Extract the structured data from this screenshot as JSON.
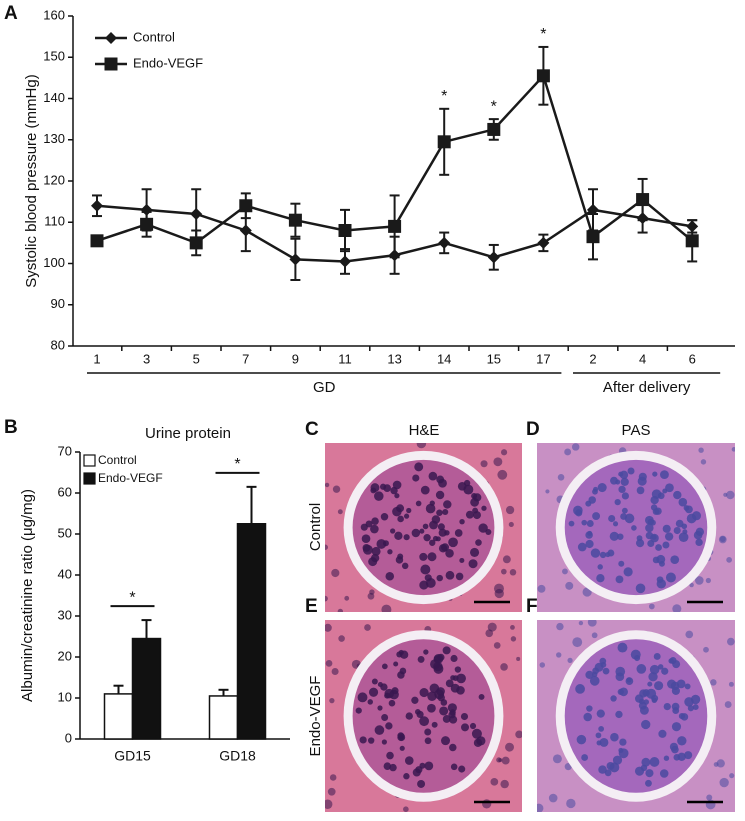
{
  "chart_data": [
    {
      "type": "line",
      "panel": "A",
      "ylabel": "Systolic blood pressure (mmHg)",
      "groups": [
        {
          "label": "GD",
          "categories": [
            "1",
            "3",
            "5",
            "7",
            "9",
            "11",
            "13",
            "14",
            "15",
            "17"
          ]
        },
        {
          "label": "After delivery",
          "categories": [
            "2",
            "4",
            "6"
          ]
        }
      ],
      "series": [
        {
          "name": "Control",
          "color": "#1a1a1a",
          "marker": "diamond",
          "values": [
            114,
            113,
            112,
            108,
            101,
            100.5,
            102,
            105,
            101.5,
            105,
            113,
            111,
            109
          ],
          "errors": [
            2.5,
            5,
            6,
            5,
            5,
            3,
            4.5,
            2.5,
            3,
            2,
            5,
            3.5,
            1.5
          ]
        },
        {
          "name": "Endo-VEGF",
          "color": "#1a1a1a",
          "marker": "square",
          "values": [
            105.5,
            109.5,
            105,
            114,
            110.5,
            108,
            109,
            129.5,
            132.5,
            145.5,
            106.5,
            115.5,
            105.5
          ],
          "errors": [
            1,
            3,
            3,
            3,
            4,
            5,
            7.5,
            8,
            2.5,
            7,
            5.5,
            5,
            5
          ],
          "significance": [
            null,
            null,
            null,
            null,
            null,
            null,
            null,
            "*",
            "*",
            "*",
            null,
            null,
            null
          ]
        }
      ],
      "ylim": [
        80,
        160
      ],
      "yticks": [
        80,
        90,
        100,
        110,
        120,
        130,
        140,
        150,
        160
      ],
      "legend": "top-left"
    },
    {
      "type": "bar",
      "panel": "B",
      "title": "Urine protein",
      "ylabel": "Albumin/creatinine ratio (μg/mg)",
      "categories": [
        "GD15",
        "GD18"
      ],
      "series": [
        {
          "name": "Control",
          "color": "#ffffff",
          "values": [
            11,
            10.5
          ],
          "errors": [
            2,
            1.5
          ]
        },
        {
          "name": "Endo-VEGF",
          "color": "#111111",
          "values": [
            24.5,
            52.5
          ],
          "errors": [
            4.5,
            9
          ]
        }
      ],
      "significance": [
        "*",
        "*"
      ],
      "ylim": [
        0,
        70
      ],
      "yticks": [
        0,
        10,
        20,
        30,
        40,
        50,
        60,
        70
      ],
      "legend": "top-left"
    }
  ],
  "micrographs": {
    "columns": [
      "H&E",
      "PAS"
    ],
    "rows": [
      "Control",
      "Endo-VEGF"
    ],
    "panels": [
      "C",
      "D",
      "E",
      "F"
    ]
  }
}
